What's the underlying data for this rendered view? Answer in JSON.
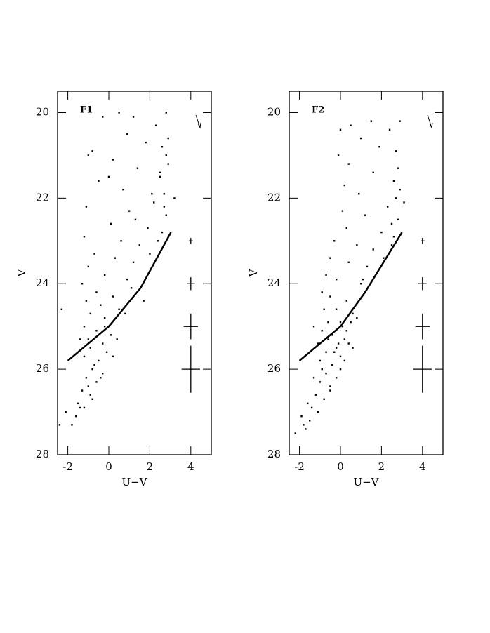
{
  "chart_data": [
    {
      "type": "scatter",
      "label": "F1",
      "xlabel": "U−V",
      "ylabel": "V",
      "xlim": [
        -2.5,
        5
      ],
      "ylim": [
        19.5,
        28
      ],
      "xticks": [
        -2,
        0,
        2,
        4
      ],
      "yticks": [
        20,
        22,
        24,
        26,
        28
      ],
      "y_inverted": true,
      "color": "#000000",
      "x": [
        0.5,
        1.2,
        2.8,
        -0.3,
        2.3,
        0.9,
        1.8,
        2.6,
        -0.8,
        0.2,
        2.9,
        1.4,
        2.5,
        -0.5,
        0.7,
        2.7,
        2.2,
        -1.1,
        1.0,
        2.8,
        0.1,
        1.9,
        2.6,
        -1.2,
        0.6,
        1.5,
        2.4,
        -0.7,
        0.3,
        1.2,
        -1.0,
        2.0,
        -0.2,
        0.9,
        -1.3,
        -0.6,
        0.2,
        1.1,
        -1.1,
        -0.4,
        0.5,
        -0.9,
        -0.2,
        0.8,
        -1.2,
        -0.6,
        0.1,
        -1.4,
        -0.3,
        0.4,
        -0.9,
        -0.1,
        -1.2,
        -0.5,
        0.2,
        -0.8,
        -0.3,
        -1.1,
        -0.6,
        -1.3,
        -0.9,
        -1.5,
        -1.2,
        -1.6,
        -2.1,
        -1.8,
        -2.4,
        3.2,
        -2.3,
        1.7,
        2.9,
        0.0,
        2.1,
        -1.0,
        1.3,
        2.7,
        2.5,
        2.8,
        -0.7,
        -1.0,
        -0.4,
        -0.8,
        -1.4,
        -1.0,
        -0.2
      ],
      "values": [
        20.0,
        20.1,
        20.0,
        20.1,
        20.3,
        20.5,
        20.7,
        20.8,
        20.9,
        21.1,
        21.2,
        21.3,
        21.5,
        21.6,
        21.8,
        21.9,
        22.1,
        22.2,
        22.3,
        22.4,
        22.6,
        22.7,
        22.8,
        22.9,
        23.0,
        23.1,
        23.0,
        23.3,
        23.4,
        23.5,
        23.6,
        23.3,
        23.8,
        23.9,
        24.0,
        24.2,
        24.3,
        24.1,
        24.4,
        24.5,
        24.6,
        24.7,
        24.8,
        24.7,
        25.0,
        25.1,
        25.2,
        25.3,
        25.4,
        25.3,
        25.5,
        25.6,
        25.7,
        25.8,
        25.7,
        26.0,
        26.1,
        26.2,
        26.3,
        26.5,
        26.6,
        26.8,
        26.9,
        27.1,
        27.0,
        27.3,
        27.3,
        22.0,
        24.6,
        24.4,
        20.6,
        21.5,
        21.9,
        21.0,
        22.5,
        22.2,
        21.4,
        21.0,
        25.9,
        26.4,
        26.2,
        26.7,
        26.9,
        25.3,
        25.0
      ],
      "line": {
        "x": [
          -2,
          0,
          1.55,
          3.03
        ],
        "values": [
          25.8,
          25.0,
          24.1,
          22.8
        ]
      },
      "error_bars": {
        "x": [
          4,
          4,
          4,
          4
        ],
        "values": [
          23,
          24,
          25,
          26
        ],
        "xerr": [
          0.1,
          0.2,
          0.35,
          0.45
        ],
        "yerr": [
          0.07,
          0.15,
          0.3,
          0.55
        ]
      }
    },
    {
      "type": "scatter",
      "label": "F2",
      "xlabel": "U−V",
      "ylabel": "V",
      "xlim": [
        -2.5,
        5
      ],
      "ylim": [
        19.5,
        28
      ],
      "xticks": [
        -2,
        0,
        2,
        4
      ],
      "yticks": [
        20,
        22,
        24,
        26,
        28
      ],
      "y_inverted": true,
      "color": "#000000",
      "x": [
        0.5,
        1.5,
        2.9,
        0.0,
        2.4,
        1.0,
        1.9,
        2.7,
        -0.1,
        0.4,
        2.8,
        1.6,
        2.6,
        0.2,
        0.9,
        2.7,
        2.3,
        0.1,
        1.2,
        2.8,
        0.3,
        2.0,
        2.6,
        -0.3,
        0.8,
        1.6,
        2.5,
        -0.5,
        0.4,
        1.3,
        -0.7,
        2.1,
        -0.2,
        1.0,
        -0.9,
        -0.5,
        0.3,
        1.2,
        -0.8,
        -0.2,
        0.6,
        -0.6,
        0.0,
        0.8,
        -0.9,
        -0.4,
        0.2,
        -1.1,
        -0.2,
        0.4,
        -0.7,
        0.0,
        -1.0,
        -0.4,
        0.2,
        -0.7,
        -0.2,
        -1.0,
        -0.5,
        -1.2,
        -0.8,
        -1.4,
        -1.1,
        -1.5,
        -1.9,
        -1.7,
        -2.2,
        3.1,
        -1.3,
        0.1,
        0.3,
        0.5,
        -0.1,
        -0.3,
        0.0,
        -0.5,
        -0.6,
        -0.9,
        -1.3,
        -1.6,
        -1.8,
        2.9,
        2.5,
        1.1,
        0.6
      ],
      "values": [
        20.3,
        20.2,
        20.2,
        20.4,
        20.4,
        20.6,
        20.8,
        20.9,
        21.0,
        21.2,
        21.3,
        21.4,
        21.6,
        21.7,
        21.9,
        22.0,
        22.2,
        22.3,
        22.4,
        22.5,
        22.7,
        22.8,
        22.9,
        23.0,
        23.1,
        23.2,
        23.1,
        23.4,
        23.5,
        23.6,
        23.8,
        23.4,
        23.9,
        24.0,
        24.2,
        24.3,
        24.4,
        24.2,
        24.6,
        24.6,
        24.7,
        24.9,
        24.9,
        24.8,
        25.1,
        25.2,
        25.3,
        25.4,
        25.5,
        25.4,
        25.6,
        25.7,
        25.8,
        25.9,
        25.8,
        26.1,
        26.2,
        26.3,
        26.4,
        26.6,
        26.7,
        26.9,
        27.0,
        27.2,
        27.1,
        27.4,
        27.5,
        22.1,
        25.0,
        25.0,
        25.1,
        24.9,
        25.4,
        25.6,
        26.0,
        26.5,
        25.3,
        26.0,
        26.2,
        26.8,
        27.3,
        21.8,
        22.6,
        23.9,
        25.5
      ],
      "line": {
        "x": [
          -2,
          0,
          1.2,
          3.0
        ],
        "values": [
          25.8,
          25.0,
          24.2,
          22.8
        ]
      },
      "error_bars": {
        "x": [
          4,
          4,
          4,
          4
        ],
        "values": [
          23,
          24,
          25,
          26
        ],
        "xerr": [
          0.1,
          0.2,
          0.35,
          0.45
        ],
        "yerr": [
          0.07,
          0.15,
          0.3,
          0.55
        ]
      }
    }
  ]
}
